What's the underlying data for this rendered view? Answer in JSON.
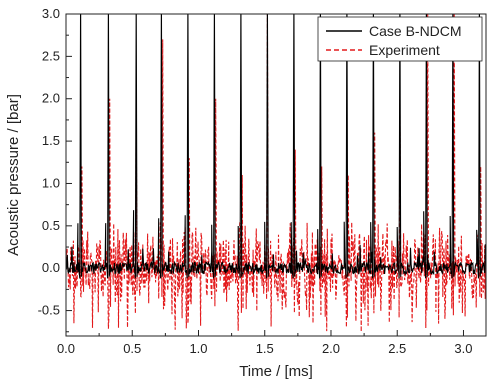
{
  "chart_data": {
    "type": "line",
    "title": "",
    "xlabel": "Time / [ms]",
    "ylabel": "Acoustic pressure / [bar]",
    "xlim": [
      0.0,
      3.17
    ],
    "ylim": [
      -0.8,
      3.0
    ],
    "xticks": [
      0.0,
      0.5,
      1.0,
      1.5,
      2.0,
      2.5,
      3.0
    ],
    "xtick_labels": [
      "0.0",
      "0.5",
      "1.0",
      "1.5",
      "2.0",
      "2.5",
      "3.0"
    ],
    "yticks": [
      -0.5,
      0.0,
      0.5,
      1.0,
      1.5,
      2.0,
      2.5,
      3.0
    ],
    "ytick_labels": [
      "-0.5",
      "0.0",
      "0.5",
      "1.0",
      "1.5",
      "2.0",
      "2.5",
      "3.0"
    ],
    "grid": false,
    "legend_position": "top-right",
    "series": [
      {
        "name": "Case B-NDCM",
        "color": "#000000",
        "style": "solid",
        "peak_times": [
          0.11,
          0.32,
          0.53,
          0.72,
          0.92,
          1.12,
          1.32,
          1.52,
          1.72,
          1.92,
          2.12,
          2.32,
          2.52,
          2.72,
          2.92,
          3.12
        ],
        "peak_values": [
          3.0,
          3.0,
          3.0,
          3.0,
          3.0,
          3.0,
          3.0,
          3.0,
          3.0,
          3.0,
          3.0,
          3.0,
          3.0,
          3.0,
          3.0,
          3.0
        ],
        "baseline_band": [
          -0.1,
          0.1
        ]
      },
      {
        "name": "Experiment",
        "color": "#e31a1c",
        "style": "dashed",
        "peak_times": [
          0.12,
          0.33,
          0.53,
          0.73,
          0.93,
          1.13,
          1.33,
          1.52,
          1.73,
          1.93,
          2.13,
          2.33,
          2.52,
          2.73,
          2.93,
          3.13
        ],
        "peak_values": [
          1.2,
          2.0,
          2.0,
          2.7,
          1.3,
          2.0,
          1.1,
          3.0,
          1.4,
          1.2,
          1.1,
          1.6,
          2.0,
          3.0,
          3.0,
          1.2
        ],
        "noise_band": [
          -0.75,
          0.55
        ]
      }
    ]
  }
}
